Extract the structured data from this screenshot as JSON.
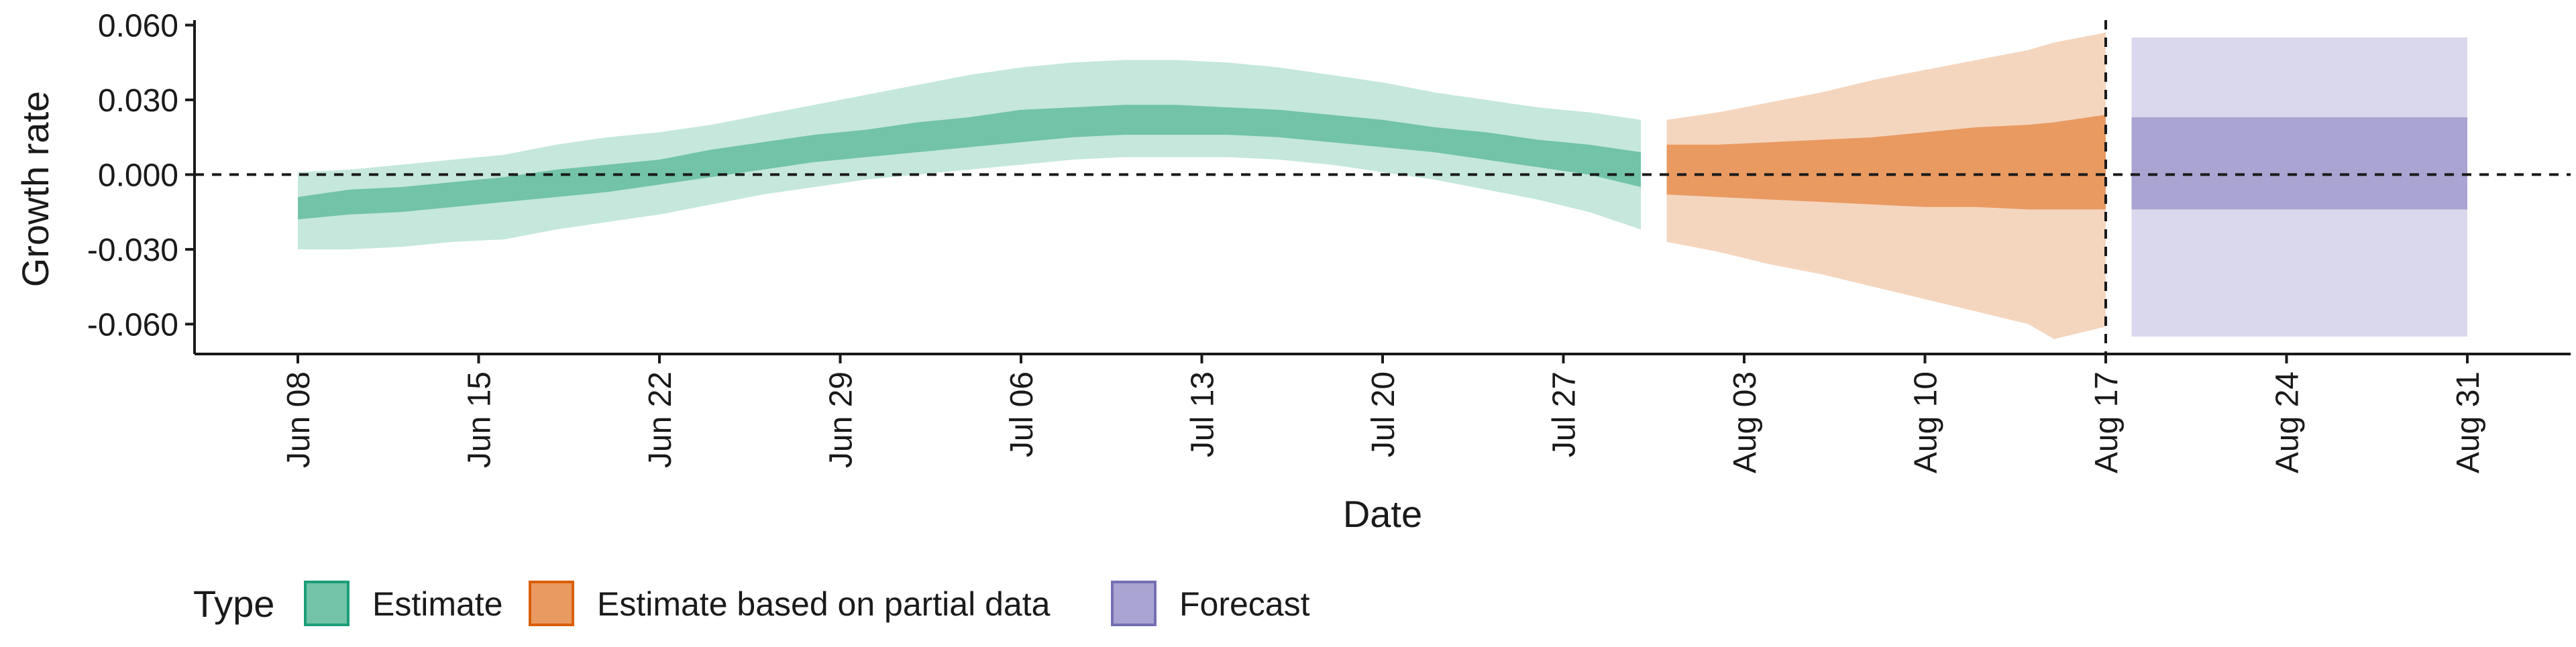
{
  "chart_data": {
    "type": "area",
    "xlabel": "Date",
    "ylabel": "Growth rate",
    "ylim": [
      -0.072,
      0.062
    ],
    "y_ticks": [
      "0.060",
      "0.030",
      "0.000",
      "-0.030",
      "-0.060"
    ],
    "y_tick_values": [
      0.06,
      0.03,
      0.0,
      -0.03,
      -0.06
    ],
    "x_ticks": [
      "Jun 08",
      "Jun 15",
      "Jun 22",
      "Jun 29",
      "Jul 06",
      "Jul 13",
      "Jul 20",
      "Jul 27",
      "Aug 03",
      "Aug 10",
      "Aug 17",
      "Aug 24",
      "Aug 31"
    ],
    "x_tick_dates": [
      "2020-06-08",
      "2020-06-15",
      "2020-06-22",
      "2020-06-29",
      "2020-07-06",
      "2020-07-13",
      "2020-07-20",
      "2020-07-27",
      "2020-08-03",
      "2020-08-10",
      "2020-08-17",
      "2020-08-24",
      "2020-08-31"
    ],
    "xlim": [
      "2020-06-04",
      "2020-09-04"
    ],
    "horizontal_reference_line": 0.0,
    "vertical_reference_line": "2020-08-17",
    "grid": false,
    "legend": {
      "position": "bottom-left",
      "title": "Type",
      "items": [
        {
          "label": "Estimate",
          "fill": "#72c3a8",
          "stroke": "#1b9e77"
        },
        {
          "label": "Estimate based on partial data",
          "fill": "#e99a61",
          "stroke": "#d95f02"
        },
        {
          "label": "Forecast",
          "fill": "#a9a4d1",
          "stroke": "#7570b3"
        }
      ]
    },
    "series": [
      {
        "name": "Estimate",
        "outer_color": "#c5e7dc",
        "inner_color": "#72c3a8",
        "points": [
          {
            "date": "2020-06-08",
            "lower90": -0.03,
            "lower50": -0.018,
            "upper50": -0.009,
            "upper90": 0.001
          },
          {
            "date": "2020-06-10",
            "lower90": -0.03,
            "lower50": -0.016,
            "upper50": -0.006,
            "upper90": 0.002
          },
          {
            "date": "2020-06-12",
            "lower90": -0.029,
            "lower50": -0.015,
            "upper50": -0.005,
            "upper90": 0.004
          },
          {
            "date": "2020-06-14",
            "lower90": -0.027,
            "lower50": -0.013,
            "upper50": -0.003,
            "upper90": 0.006
          },
          {
            "date": "2020-06-16",
            "lower90": -0.026,
            "lower50": -0.011,
            "upper50": -0.001,
            "upper90": 0.008
          },
          {
            "date": "2020-06-18",
            "lower90": -0.022,
            "lower50": -0.009,
            "upper50": 0.002,
            "upper90": 0.012
          },
          {
            "date": "2020-06-20",
            "lower90": -0.019,
            "lower50": -0.007,
            "upper50": 0.004,
            "upper90": 0.015
          },
          {
            "date": "2020-06-22",
            "lower90": -0.016,
            "lower50": -0.004,
            "upper50": 0.006,
            "upper90": 0.017
          },
          {
            "date": "2020-06-24",
            "lower90": -0.012,
            "lower50": -0.001,
            "upper50": 0.01,
            "upper90": 0.02
          },
          {
            "date": "2020-06-26",
            "lower90": -0.008,
            "lower50": 0.002,
            "upper50": 0.013,
            "upper90": 0.024
          },
          {
            "date": "2020-06-28",
            "lower90": -0.005,
            "lower50": 0.005,
            "upper50": 0.016,
            "upper90": 0.028
          },
          {
            "date": "2020-06-30",
            "lower90": -0.002,
            "lower50": 0.007,
            "upper50": 0.018,
            "upper90": 0.032
          },
          {
            "date": "2020-07-02",
            "lower90": 0.0,
            "lower50": 0.009,
            "upper50": 0.021,
            "upper90": 0.036
          },
          {
            "date": "2020-07-04",
            "lower90": 0.002,
            "lower50": 0.011,
            "upper50": 0.023,
            "upper90": 0.04
          },
          {
            "date": "2020-07-06",
            "lower90": 0.004,
            "lower50": 0.013,
            "upper50": 0.026,
            "upper90": 0.043
          },
          {
            "date": "2020-07-08",
            "lower90": 0.006,
            "lower50": 0.015,
            "upper50": 0.027,
            "upper90": 0.045
          },
          {
            "date": "2020-07-10",
            "lower90": 0.007,
            "lower50": 0.016,
            "upper50": 0.028,
            "upper90": 0.046
          },
          {
            "date": "2020-07-12",
            "lower90": 0.007,
            "lower50": 0.016,
            "upper50": 0.028,
            "upper90": 0.046
          },
          {
            "date": "2020-07-14",
            "lower90": 0.007,
            "lower50": 0.016,
            "upper50": 0.027,
            "upper90": 0.045
          },
          {
            "date": "2020-07-16",
            "lower90": 0.006,
            "lower50": 0.015,
            "upper50": 0.026,
            "upper90": 0.043
          },
          {
            "date": "2020-07-18",
            "lower90": 0.004,
            "lower50": 0.013,
            "upper50": 0.024,
            "upper90": 0.04
          },
          {
            "date": "2020-07-20",
            "lower90": 0.001,
            "lower50": 0.011,
            "upper50": 0.022,
            "upper90": 0.037
          },
          {
            "date": "2020-07-22",
            "lower90": -0.002,
            "lower50": 0.009,
            "upper50": 0.019,
            "upper90": 0.033
          },
          {
            "date": "2020-07-24",
            "lower90": -0.006,
            "lower50": 0.006,
            "upper50": 0.017,
            "upper90": 0.03
          },
          {
            "date": "2020-07-26",
            "lower90": -0.01,
            "lower50": 0.003,
            "upper50": 0.014,
            "upper90": 0.027
          },
          {
            "date": "2020-07-28",
            "lower90": -0.015,
            "lower50": 0.0,
            "upper50": 0.012,
            "upper90": 0.025
          },
          {
            "date": "2020-07-30",
            "lower90": -0.022,
            "lower50": -0.005,
            "upper50": 0.009,
            "upper90": 0.022
          }
        ]
      },
      {
        "name": "Estimate based on partial data",
        "outer_color": "#f4d6bf",
        "inner_color": "#e99a61",
        "points": [
          {
            "date": "2020-07-31",
            "lower90": -0.027,
            "lower50": -0.008,
            "upper50": 0.012,
            "upper90": 0.022
          },
          {
            "date": "2020-08-02",
            "lower90": -0.031,
            "lower50": -0.009,
            "upper50": 0.012,
            "upper90": 0.025
          },
          {
            "date": "2020-08-04",
            "lower90": -0.036,
            "lower50": -0.01,
            "upper50": 0.013,
            "upper90": 0.029
          },
          {
            "date": "2020-08-06",
            "lower90": -0.04,
            "lower50": -0.011,
            "upper50": 0.014,
            "upper90": 0.033
          },
          {
            "date": "2020-08-08",
            "lower90": -0.045,
            "lower50": -0.012,
            "upper50": 0.015,
            "upper90": 0.038
          },
          {
            "date": "2020-08-10",
            "lower90": -0.05,
            "lower50": -0.013,
            "upper50": 0.017,
            "upper90": 0.042
          },
          {
            "date": "2020-08-12",
            "lower90": -0.055,
            "lower50": -0.013,
            "upper50": 0.019,
            "upper90": 0.046
          },
          {
            "date": "2020-08-14",
            "lower90": -0.06,
            "lower50": -0.014,
            "upper50": 0.02,
            "upper90": 0.05
          },
          {
            "date": "2020-08-15",
            "lower90": -0.066,
            "lower50": -0.014,
            "upper50": 0.021,
            "upper90": 0.053
          },
          {
            "date": "2020-08-17",
            "lower90": -0.061,
            "lower50": -0.014,
            "upper50": 0.024,
            "upper90": 0.057
          }
        ]
      },
      {
        "name": "Forecast",
        "outer_color": "#dad8ec",
        "inner_color": "#a9a4d1",
        "points": [
          {
            "date": "2020-08-18",
            "lower90": -0.065,
            "lower50": -0.014,
            "upper50": 0.023,
            "upper90": 0.055
          },
          {
            "date": "2020-08-31",
            "lower90": -0.065,
            "lower50": -0.014,
            "upper50": 0.023,
            "upper90": 0.055
          }
        ]
      }
    ]
  }
}
